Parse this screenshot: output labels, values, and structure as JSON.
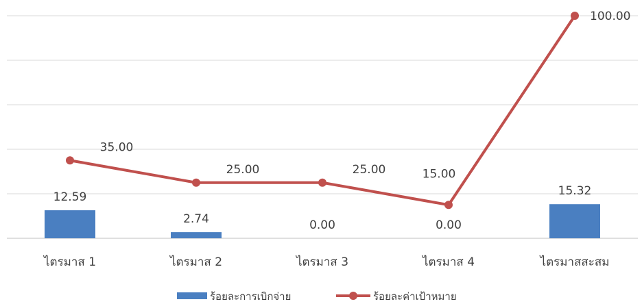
{
  "chart_data": {
    "type": "bar+line",
    "categories": [
      "ไตรมาส 1",
      "ไตรมาส 2",
      "ไตรมาส 3",
      "ไตรมาส 4",
      "ไตรมาสสะสม"
    ],
    "series": [
      {
        "name": "ร้อยละการเบิกจ่าย",
        "type": "bar",
        "color": "#4a7fc1",
        "values": [
          12.59,
          2.74,
          0.0,
          0.0,
          15.32
        ],
        "labels": [
          "12.59",
          "2.74",
          "0.00",
          "0.00",
          "15.32"
        ]
      },
      {
        "name": "ร้อยละค่าเป้าหมาย",
        "type": "line",
        "color": "#c0504d",
        "values": [
          35.0,
          25.0,
          25.0,
          15.0,
          100.0
        ],
        "labels": [
          "35.00",
          "25.00",
          "25.00",
          "15.00",
          "100.00"
        ]
      }
    ],
    "ylim": [
      0,
      100
    ],
    "grid": true,
    "legend_position": "bottom"
  }
}
